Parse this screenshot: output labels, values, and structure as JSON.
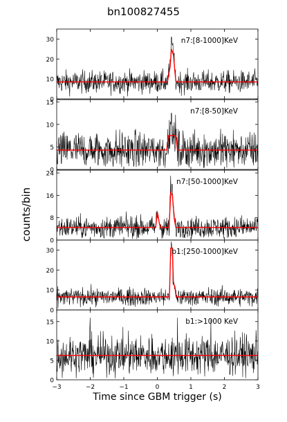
{
  "chart_data": {
    "type": "line",
    "title": "bn100827455",
    "xlabel": "Time since GBM trigger (s)",
    "ylabel": "counts/bin",
    "xlim": [
      -3,
      3
    ],
    "x_ticks": [
      -3,
      -2,
      -1,
      0,
      1,
      2,
      3
    ],
    "x_tick_labels": [
      "−3",
      "−2",
      "−1",
      "0",
      "1",
      "2",
      "3"
    ],
    "colors": {
      "data": "#000000",
      "model": "#ff0000"
    },
    "panels": [
      {
        "label": "n7:[8-1000]KeV",
        "ylim": [
          0,
          35
        ],
        "yticks": [
          0,
          10,
          20,
          30
        ],
        "background": 8.5,
        "noise": 2.8,
        "model": [
          [
            -3,
            8.5
          ],
          [
            0.3,
            8.5
          ],
          [
            0.38,
            16
          ],
          [
            0.42,
            25
          ],
          [
            0.48,
            22
          ],
          [
            0.55,
            9
          ],
          [
            0.6,
            8.5
          ],
          [
            3,
            8.5
          ]
        ],
        "spikes": [
          [
            0.42,
            31
          ],
          [
            0.45,
            27
          ],
          [
            0.5,
            23
          ],
          [
            0.39,
            20
          ]
        ]
      },
      {
        "label": "n7:[8-50]KeV",
        "ylim": [
          0,
          15.5
        ],
        "yticks": [
          0,
          5,
          10,
          15
        ],
        "background": 4.3,
        "noise": 2.1,
        "model": [
          [
            -3,
            4.3
          ],
          [
            0.28,
            4.3
          ],
          [
            0.33,
            7.5
          ],
          [
            0.55,
            7.5
          ],
          [
            0.6,
            4.3
          ],
          [
            3,
            4.3
          ]
        ],
        "spikes": [
          [
            0.42,
            12.5
          ],
          [
            0.36,
            11
          ],
          [
            0.5,
            10.5
          ]
        ]
      },
      {
        "label": "n7:[50-1000]KeV",
        "ylim": [
          0,
          25
        ],
        "yticks": [
          0,
          8,
          16,
          24
        ],
        "background": 4.5,
        "noise": 2.0,
        "model": [
          [
            -3,
            4.5
          ],
          [
            -0.05,
            4.5
          ],
          [
            0.0,
            10
          ],
          [
            0.06,
            6
          ],
          [
            0.1,
            4.5
          ],
          [
            0.35,
            4.5
          ],
          [
            0.4,
            17
          ],
          [
            0.45,
            16
          ],
          [
            0.5,
            8
          ],
          [
            0.55,
            4.5
          ],
          [
            3,
            4.5
          ]
        ],
        "spikes": [
          [
            0.4,
            23
          ],
          [
            0.44,
            20
          ],
          [
            0.03,
            9
          ]
        ]
      },
      {
        "label": "b1:[250-1000]KeV",
        "ylim": [
          0,
          35
        ],
        "yticks": [
          0,
          10,
          20,
          30
        ],
        "background": 6.5,
        "noise": 2.2,
        "model": [
          [
            -3,
            6.5
          ],
          [
            0.36,
            6.5
          ],
          [
            0.4,
            31
          ],
          [
            0.45,
            31
          ],
          [
            0.48,
            13
          ],
          [
            0.52,
            12
          ],
          [
            0.56,
            6.5
          ],
          [
            3,
            6.5
          ]
        ],
        "spikes": [
          [
            0.41,
            27
          ],
          [
            0.44,
            31
          ],
          [
            0.47,
            13
          ],
          [
            0.52,
            12
          ]
        ]
      },
      {
        "label": "b1:>1000 KeV",
        "ylim": [
          0,
          18
        ],
        "yticks": [
          0,
          5,
          10,
          15
        ],
        "background": 6.3,
        "noise": 2.6,
        "model": [
          [
            -3,
            6.3
          ],
          [
            3,
            6.3
          ]
        ],
        "spikes": [
          [
            -2.0,
            16
          ],
          [
            0.6,
            16
          ],
          [
            1.6,
            15.5
          ]
        ]
      }
    ]
  }
}
